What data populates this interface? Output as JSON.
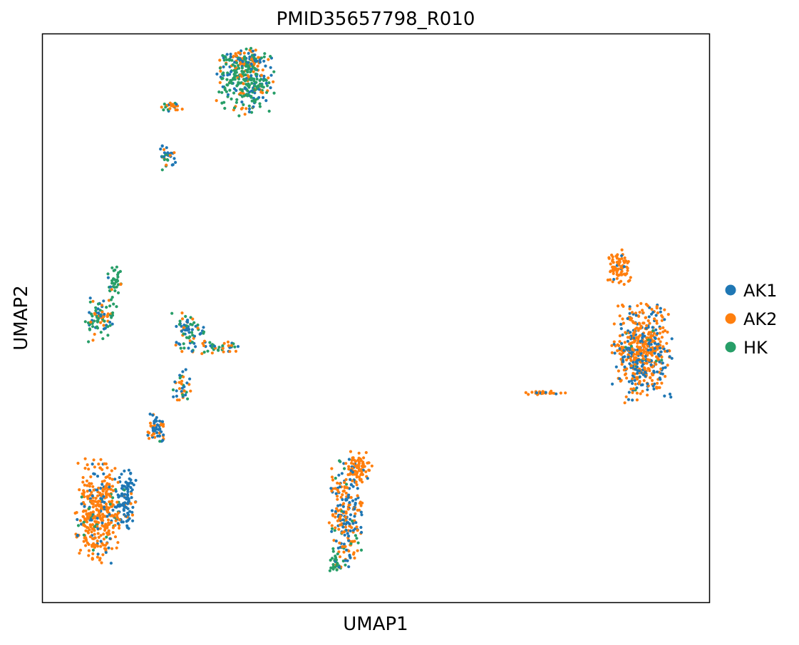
{
  "chart_data": {
    "type": "scatter",
    "title": "PMID35657798_R010",
    "xlabel": "UMAP1",
    "ylabel": "UMAP2",
    "xlim": [
      0,
      100
    ],
    "ylim": [
      0,
      100
    ],
    "xticks": false,
    "yticks": false,
    "grid": false,
    "legend_position": "right",
    "series": [
      {
        "name": "AK1",
        "color": "#1f77b4"
      },
      {
        "name": "AK2",
        "color": "#ff7f0e"
      },
      {
        "name": "HK",
        "color": "#279e68"
      }
    ],
    "clusters": [
      {
        "cx": 30.5,
        "cy": 91.5,
        "rx": 4.2,
        "ry": 5.5,
        "n": 300,
        "mix": [
          0.2,
          0.15,
          0.65
        ]
      },
      {
        "cx": 30.5,
        "cy": 95.5,
        "rx": 3.8,
        "ry": 1.6,
        "n": 70,
        "mix": [
          0.3,
          0.55,
          0.15
        ]
      },
      {
        "cx": 19.4,
        "cy": 87.3,
        "rx": 1.6,
        "ry": 0.9,
        "n": 25,
        "mix": [
          0.2,
          0.5,
          0.3
        ]
      },
      {
        "cx": 18.5,
        "cy": 78.5,
        "rx": 1.4,
        "ry": 3.0,
        "n": 35,
        "mix": [
          0.55,
          0.2,
          0.25
        ]
      },
      {
        "cx": 8.7,
        "cy": 49.8,
        "rx": 2.3,
        "ry": 3.6,
        "n": 90,
        "mix": [
          0.2,
          0.3,
          0.5
        ]
      },
      {
        "cx": 10.8,
        "cy": 56.5,
        "rx": 1.2,
        "ry": 3.0,
        "n": 35,
        "mix": [
          0.1,
          0.1,
          0.8
        ]
      },
      {
        "cx": 21.8,
        "cy": 47.5,
        "rx": 2.2,
        "ry": 3.5,
        "n": 70,
        "mix": [
          0.45,
          0.2,
          0.35
        ]
      },
      {
        "cx": 26.5,
        "cy": 44.8,
        "rx": 2.8,
        "ry": 1.5,
        "n": 40,
        "mix": [
          0.3,
          0.3,
          0.4
        ]
      },
      {
        "cx": 21.0,
        "cy": 38.0,
        "rx": 1.3,
        "ry": 3.2,
        "n": 35,
        "mix": [
          0.6,
          0.2,
          0.2
        ]
      },
      {
        "cx": 17.0,
        "cy": 30.5,
        "rx": 1.5,
        "ry": 2.5,
        "n": 60,
        "mix": [
          0.65,
          0.3,
          0.05
        ]
      },
      {
        "cx": 8.3,
        "cy": 16.0,
        "rx": 3.4,
        "ry": 8.5,
        "n": 380,
        "mix": [
          0.15,
          0.8,
          0.05
        ]
      },
      {
        "cx": 12.4,
        "cy": 18.0,
        "rx": 1.6,
        "ry": 5.5,
        "n": 110,
        "mix": [
          0.85,
          0.12,
          0.03
        ]
      },
      {
        "cx": 45.5,
        "cy": 15.5,
        "rx": 2.4,
        "ry": 9.5,
        "n": 240,
        "mix": [
          0.35,
          0.55,
          0.1
        ]
      },
      {
        "cx": 47.5,
        "cy": 24.0,
        "rx": 1.8,
        "ry": 2.6,
        "n": 70,
        "mix": [
          0.1,
          0.85,
          0.05
        ]
      },
      {
        "cx": 43.8,
        "cy": 7.0,
        "rx": 0.9,
        "ry": 2.2,
        "n": 30,
        "mix": [
          0.05,
          0.05,
          0.9
        ]
      },
      {
        "cx": 75.2,
        "cy": 36.8,
        "rx": 3.0,
        "ry": 0.5,
        "n": 28,
        "mix": [
          0.1,
          0.9,
          0.0
        ]
      },
      {
        "cx": 90.0,
        "cy": 44.0,
        "rx": 4.2,
        "ry": 8.5,
        "n": 520,
        "mix": [
          0.35,
          0.6,
          0.05
        ]
      },
      {
        "cx": 86.5,
        "cy": 59.0,
        "rx": 1.8,
        "ry": 3.0,
        "n": 80,
        "mix": [
          0.05,
          0.95,
          0.0
        ]
      }
    ]
  }
}
